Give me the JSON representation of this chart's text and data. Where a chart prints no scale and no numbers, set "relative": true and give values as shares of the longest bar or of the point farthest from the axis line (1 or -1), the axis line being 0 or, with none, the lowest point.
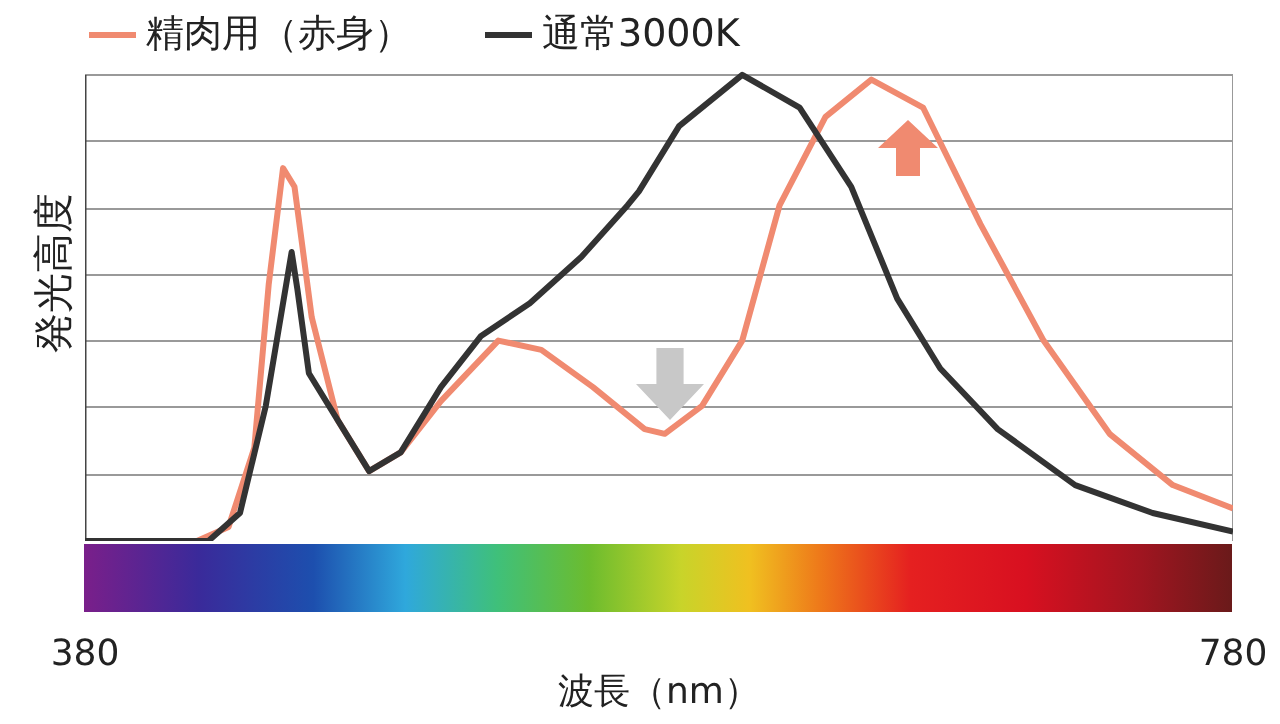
{
  "chart_data": {
    "type": "line",
    "relative": true,
    "xlabel": "波長（nm）",
    "ylabel": "発光高度",
    "xlim": [
      380,
      780
    ],
    "xticks": [
      380,
      780
    ],
    "grid": "y",
    "legend": "top",
    "line_style": "solid",
    "marker": "none",
    "series": [
      {
        "name": "精肉用（赤身）",
        "color": "#f08a70",
        "x": [
          380,
          419,
          430,
          439,
          444,
          449,
          453,
          459,
          468,
          479,
          490,
          504,
          524,
          539,
          557,
          575,
          582,
          595,
          609,
          622,
          638,
          654,
          672,
          692,
          714,
          737,
          759,
          780
        ],
        "values": [
          0,
          0,
          0.03,
          0.2,
          0.55,
          0.8,
          0.76,
          0.48,
          0.26,
          0.15,
          0.19,
          0.3,
          0.43,
          0.41,
          0.33,
          0.24,
          0.23,
          0.29,
          0.43,
          0.72,
          0.91,
          0.99,
          0.93,
          0.68,
          0.43,
          0.23,
          0.12,
          0.07
        ]
      },
      {
        "name": "通常3000K",
        "color": "#333333",
        "x": [
          380,
          423,
          434,
          443,
          449,
          452,
          454,
          458,
          468,
          479,
          490,
          504,
          518,
          535,
          553,
          569,
          573,
          587,
          609,
          629,
          647,
          663,
          678,
          698,
          725,
          752,
          780
        ],
        "values": [
          0,
          0,
          0.06,
          0.29,
          0.51,
          0.62,
          0.54,
          0.36,
          0.26,
          0.15,
          0.19,
          0.33,
          0.44,
          0.51,
          0.61,
          0.72,
          0.75,
          0.89,
          1.0,
          0.93,
          0.76,
          0.52,
          0.37,
          0.24,
          0.12,
          0.06,
          0.02
        ]
      }
    ]
  }
}
